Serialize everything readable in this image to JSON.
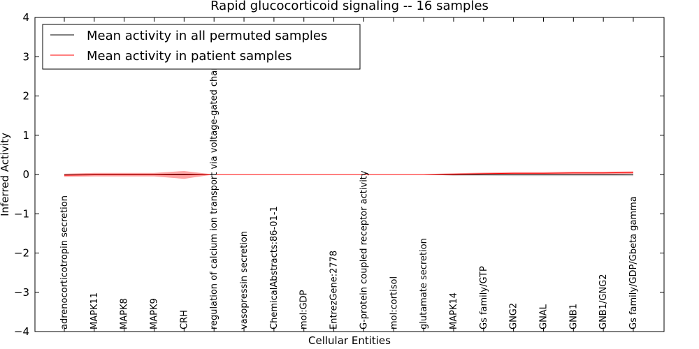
{
  "chart_data": {
    "type": "line",
    "title": "Rapid glucocorticoid signaling -- 16 samples",
    "xlabel": "Cellular Entities",
    "ylabel": "Inferred Activity",
    "ylim": [
      -4,
      4
    ],
    "yticks": [
      4,
      3,
      2,
      1,
      0,
      -1,
      -2,
      -3,
      -4
    ],
    "ytick_labels": [
      "4",
      "3",
      "2",
      "1",
      "0",
      "−1",
      "−2",
      "−3",
      "−4"
    ],
    "grid": false,
    "legend": {
      "placement": "top-left",
      "entries": [
        {
          "label": "Mean activity in all permuted samples",
          "color": "#000000"
        },
        {
          "label": "Mean activity in patient samples",
          "color": "#ff0000"
        }
      ]
    },
    "categories": [
      "adrenocorticotropin secretion",
      "MAPK11",
      "MAPK8",
      "MAPK9",
      "CRH",
      "regulation of calcium ion transport via voltage-gated channel",
      "vasopressin secretion",
      "ChemicalAbstracts:86-01-1",
      "mol:GDP",
      "EntrezGene:2778",
      "G-protein coupled receptor activity",
      "mol:cortisol",
      "glutamate secretion",
      "MAPK14",
      "Gs family/GTP",
      "GNG2",
      "GNAL",
      "GNB1",
      "GNB1/GNG2",
      "Gs family/GDP/Gbeta gamma"
    ],
    "series": [
      {
        "name": "Mean activity in all permuted samples",
        "color": "#000000",
        "values": [
          -0.01,
          0.0,
          0.0,
          0.0,
          0.01,
          0.0,
          0.0,
          0.0,
          0.0,
          0.0,
          0.0,
          0.0,
          0.0,
          0.0,
          0.0,
          0.0,
          0.0,
          0.0,
          0.0,
          0.0
        ]
      },
      {
        "name": "Mean activity in patient samples",
        "color": "#ff0000",
        "values": [
          -0.02,
          -0.01,
          -0.01,
          -0.01,
          -0.01,
          0.0,
          0.0,
          0.0,
          0.0,
          0.0,
          0.0,
          0.0,
          0.0,
          0.01,
          0.02,
          0.03,
          0.03,
          0.04,
          0.04,
          0.05
        ],
        "band_upper": [
          0.02,
          0.04,
          0.04,
          0.04,
          0.09,
          0.0,
          0.0,
          0.0,
          0.0,
          0.0,
          0.0,
          0.0,
          0.01,
          0.03,
          0.05,
          0.06,
          0.06,
          0.07,
          0.07,
          0.08
        ],
        "band_lower": [
          -0.06,
          -0.05,
          -0.05,
          -0.05,
          -0.11,
          0.0,
          0.0,
          0.0,
          0.0,
          0.0,
          0.0,
          0.0,
          -0.01,
          -0.02,
          -0.01,
          -0.01,
          -0.01,
          0.0,
          0.0,
          0.02
        ]
      }
    ],
    "permuted_band_upper": [
      0.0,
      0.0,
      0.0,
      0.0,
      0.01,
      0.0,
      0.0,
      0.0,
      0.0,
      0.0,
      0.0,
      0.0,
      0.0,
      0.0,
      0.0,
      0.0,
      0.0,
      0.0,
      0.0,
      0.0
    ],
    "permuted_band_lower": [
      -0.02,
      -0.01,
      -0.01,
      -0.01,
      -0.01,
      0.0,
      0.0,
      0.0,
      0.0,
      0.0,
      0.0,
      0.0,
      0.0,
      -0.03,
      -0.03,
      -0.04,
      -0.04,
      -0.04,
      -0.04,
      -0.04
    ]
  }
}
